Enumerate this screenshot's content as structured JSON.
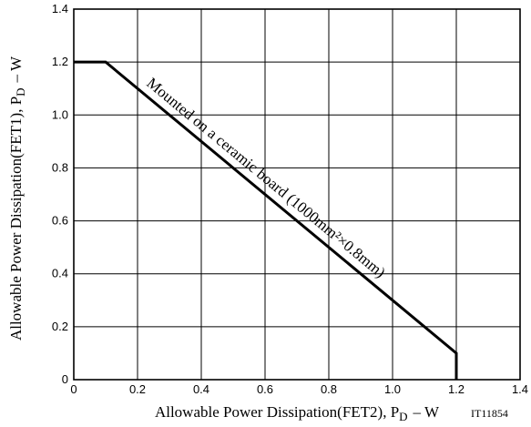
{
  "chart_data": {
    "type": "line",
    "x": [
      0,
      0.1,
      1.2,
      1.2
    ],
    "series": [
      {
        "values": [
          1.2,
          1.2,
          0.1,
          0
        ]
      }
    ],
    "xlim": [
      0,
      1.4
    ],
    "ylim": [
      0,
      1.4
    ],
    "x_ticks": [
      "0",
      "0.2",
      "0.4",
      "0.6",
      "0.8",
      "1.0",
      "1.2",
      "1.4"
    ],
    "y_ticks": [
      "0",
      "0.2",
      "0.4",
      "0.6",
      "0.8",
      "1.0",
      "1.2",
      "1.4"
    ],
    "grid": true,
    "xlabel": {
      "main": "Allowable Power Dissipation(FET2), P",
      "sub": "D",
      "unit": "– W"
    },
    "ylabel": {
      "main": "Allowable Power Dissipation(FET1), P",
      "sub": "D",
      "unit": "– W"
    },
    "annotation": "Mounted on a ceramic board (1000mm²×0.8mm)",
    "code": "IT11854",
    "line_color": "#000000"
  }
}
